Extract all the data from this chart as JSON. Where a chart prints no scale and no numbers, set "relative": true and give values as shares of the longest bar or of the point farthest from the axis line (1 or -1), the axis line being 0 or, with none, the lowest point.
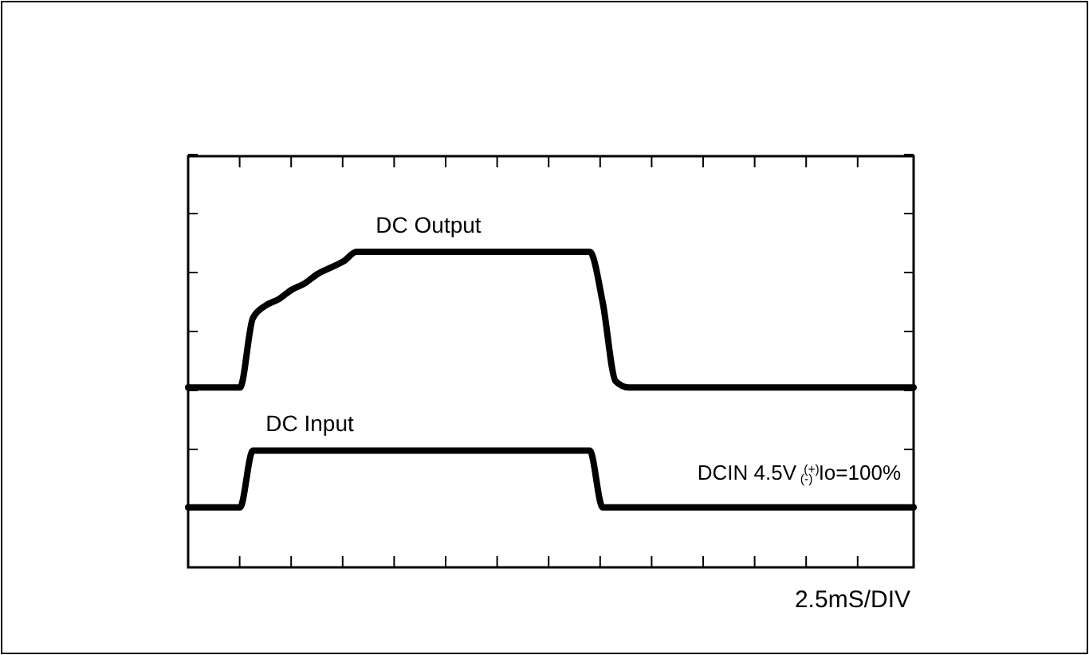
{
  "chart_data": {
    "type": "line",
    "relative": true,
    "grid": false,
    "legend": false,
    "marker": "none",
    "line_style": "solid",
    "categories": [
      null,
      null,
      null,
      null,
      null,
      null,
      null,
      null,
      null,
      null,
      null,
      null,
      null,
      null,
      null,
      null,
      null,
      null,
      null,
      null,
      null,
      null,
      null,
      null,
      null,
      null,
      null,
      null,
      null,
      null,
      null,
      null,
      null,
      null,
      null,
      null,
      null,
      null,
      null,
      null,
      null,
      null,
      null,
      null,
      null,
      null,
      null,
      null,
      null,
      null,
      null,
      null,
      null,
      null,
      null,
      null,
      null
    ],
    "series": [
      {
        "name": "DC Output",
        "color": "#000000",
        "values": [
          0.57,
          0.57,
          0.57,
          0.57,
          0.57,
          0.79,
          0.83,
          0.85,
          0.88,
          0.9,
          0.93,
          0.95,
          0.97,
          1,
          1,
          1,
          1,
          1,
          1,
          1,
          1,
          1,
          1,
          1,
          1,
          1,
          1,
          1,
          1,
          1,
          1,
          1,
          0.84,
          0.59,
          0.57,
          0.57,
          0.57,
          0.57,
          0.57,
          0.57,
          0.57,
          0.57,
          0.57,
          0.57,
          0.57,
          0.57,
          0.57,
          0.57,
          0.57,
          0.57,
          0.57,
          0.57,
          0.57,
          0.57,
          0.57,
          0.57,
          0.57
        ]
      },
      {
        "name": "DC Input",
        "color": "#000000",
        "values": [
          0.19,
          0.19,
          0.19,
          0.19,
          0.19,
          0.37,
          0.37,
          0.37,
          0.37,
          0.37,
          0.37,
          0.37,
          0.37,
          0.37,
          0.37,
          0.37,
          0.37,
          0.37,
          0.37,
          0.37,
          0.37,
          0.37,
          0.37,
          0.37,
          0.37,
          0.37,
          0.37,
          0.37,
          0.37,
          0.37,
          0.37,
          0.37,
          0.19,
          0.19,
          0.19,
          0.19,
          0.19,
          0.19,
          0.19,
          0.19,
          0.19,
          0.19,
          0.19,
          0.19,
          0.19,
          0.19,
          0.19,
          0.19,
          0.19,
          0.19,
          0.19,
          0.19,
          0.19,
          0.19,
          0.19,
          0.19,
          0.19
        ]
      }
    ],
    "annotations": [
      "DCIN 4.5V $^{(+)}$$_{(-)}$ Io=100%",
      "2.5mS/DIV"
    ]
  }
}
